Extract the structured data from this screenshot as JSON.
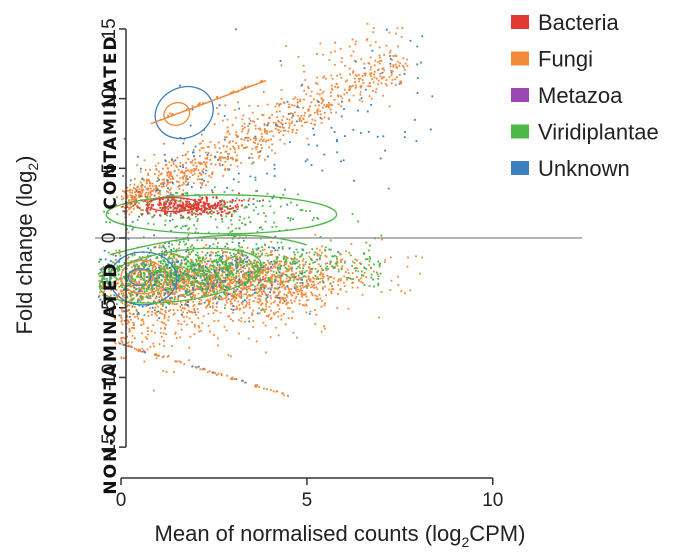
{
  "chart_data": {
    "type": "scatter",
    "title": "",
    "xlabel": "Mean of normalised counts (log",
    "xlabel_sub": "2",
    "xlabel_tail": "CPM)",
    "ylabel": "Fold change (log",
    "ylabel_sub": "2",
    "ylabel_tail": ")",
    "xlim": [
      -0.7,
      12.4
    ],
    "ylim": [
      -17,
      16
    ],
    "xticks": [
      0,
      5,
      10
    ],
    "yticks": [
      15,
      10,
      5,
      0,
      -5,
      -10,
      -15
    ],
    "grid": false,
    "legend_position": "top-right",
    "region_labels": {
      "upper": "CONTAMINATED",
      "lower": "NON-CONTAMINATED"
    },
    "series": [
      {
        "name": "Bacteria",
        "color": "#e23a32"
      },
      {
        "name": "Fungi",
        "color": "#f3893b"
      },
      {
        "name": "Metazoa",
        "color": "#9a48b0"
      },
      {
        "name": "Viridiplantae",
        "color": "#4cb848"
      },
      {
        "name": "Unknown",
        "color": "#3b7fbf"
      }
    ],
    "reference_line_y": 0
  }
}
